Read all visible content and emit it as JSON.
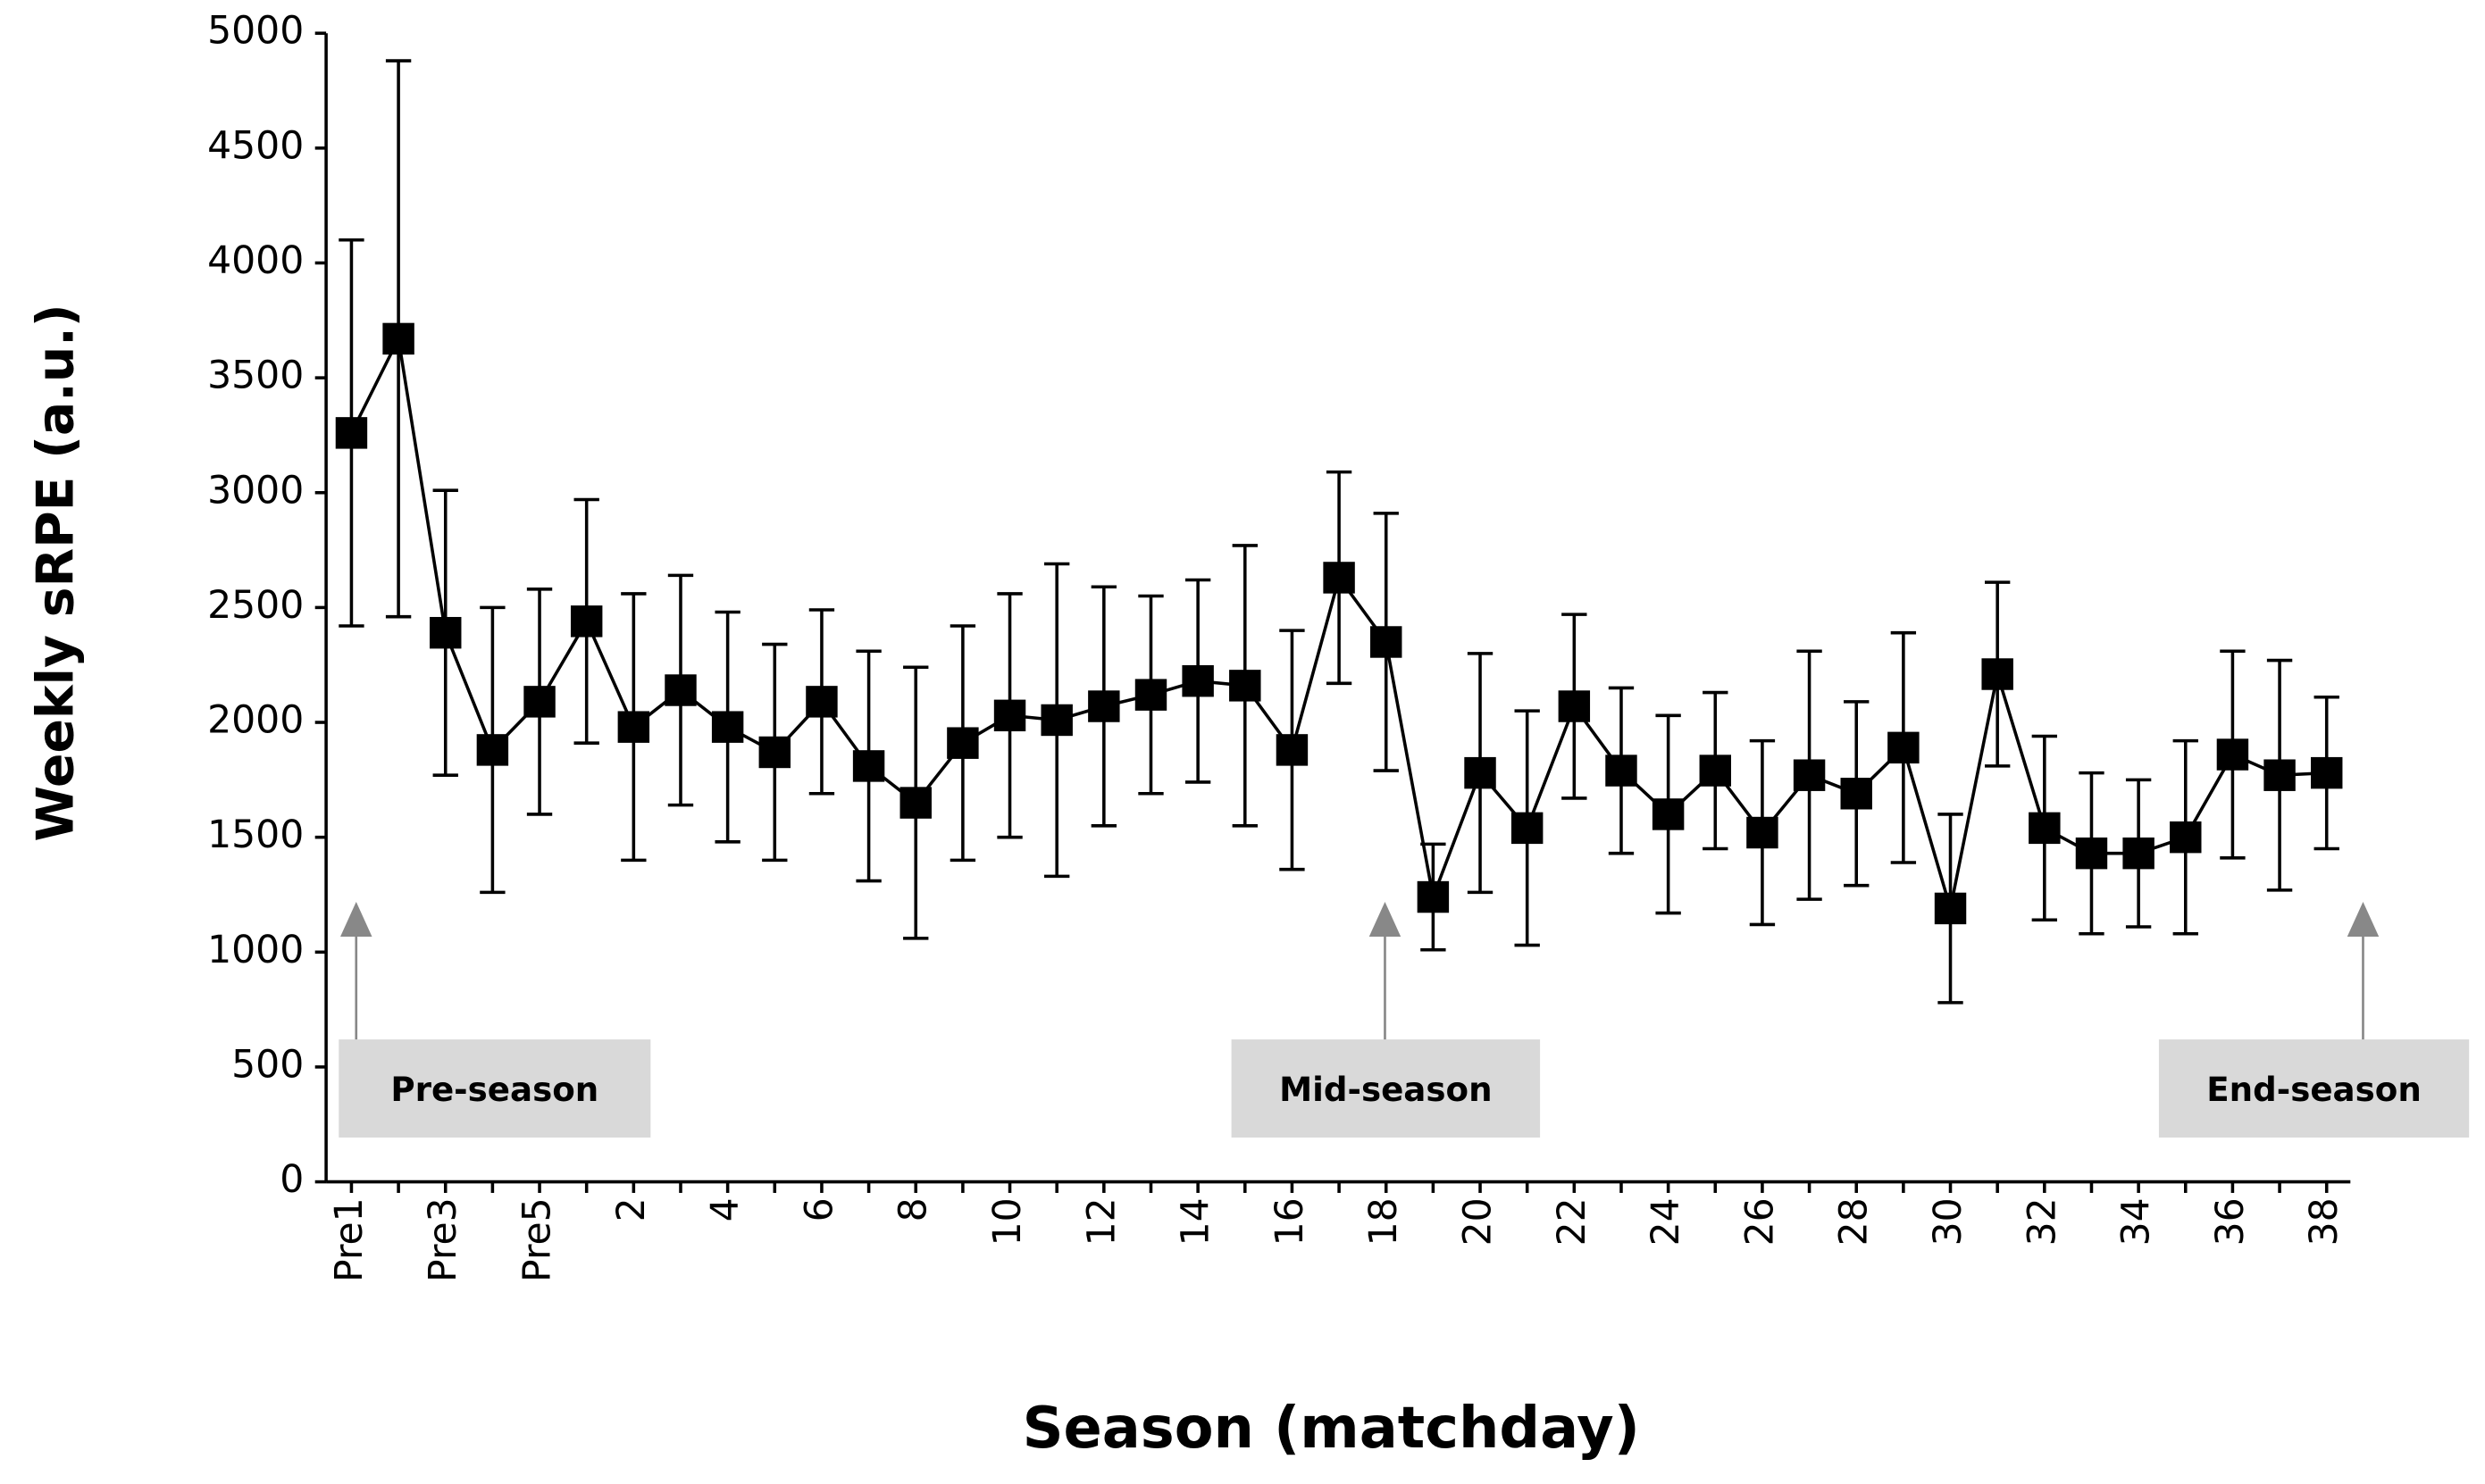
{
  "chart_data": {
    "type": "line",
    "xlabel": "Season (matchday)",
    "ylabel": "Weekly sRPE (a.u.)",
    "categories": [
      "Pre1",
      null,
      "Pre3",
      null,
      "Pre5",
      null,
      "2",
      null,
      "4",
      null,
      "6",
      null,
      "8",
      null,
      "10",
      null,
      "12",
      null,
      "14",
      null,
      "16",
      null,
      "18",
      null,
      "20",
      null,
      "22",
      null,
      "24",
      null,
      "26",
      null,
      "28",
      null,
      "30",
      null,
      "32",
      null,
      "34",
      null,
      "36",
      null,
      "38"
    ],
    "series": [
      {
        "color": "#000000",
        "values": [
          3260,
          3670,
          2390,
          1880,
          2090,
          2440,
          1980,
          2140,
          1980,
          1870,
          2090,
          1810,
          1650,
          1910,
          2030,
          2010,
          2070,
          2120,
          2180,
          2160,
          1880,
          2630,
          2350,
          1240,
          1780,
          1540,
          2070,
          1790,
          1600,
          1790,
          1520,
          1770,
          1690,
          1890,
          1190,
          2210,
          1540,
          1430,
          1430,
          1500,
          1860,
          1770,
          1780
        ],
        "errors": [
          840,
          1210,
          620,
          620,
          490,
          530,
          580,
          500,
          500,
          470,
          400,
          500,
          590,
          510,
          530,
          680,
          520,
          430,
          440,
          610,
          520,
          460,
          560,
          230,
          520,
          510,
          400,
          360,
          430,
          340,
          400,
          540,
          400,
          500,
          410,
          400,
          400,
          350,
          320,
          420,
          450,
          500,
          330
        ]
      }
    ],
    "ylim": [
      0,
      5000
    ],
    "yticks": [
      0,
      500,
      1000,
      1500,
      2000,
      2500,
      3000,
      3500,
      4000,
      4500,
      5000
    ],
    "annotations": [
      "Pre-season",
      "Mid-season",
      "End-season"
    ]
  }
}
